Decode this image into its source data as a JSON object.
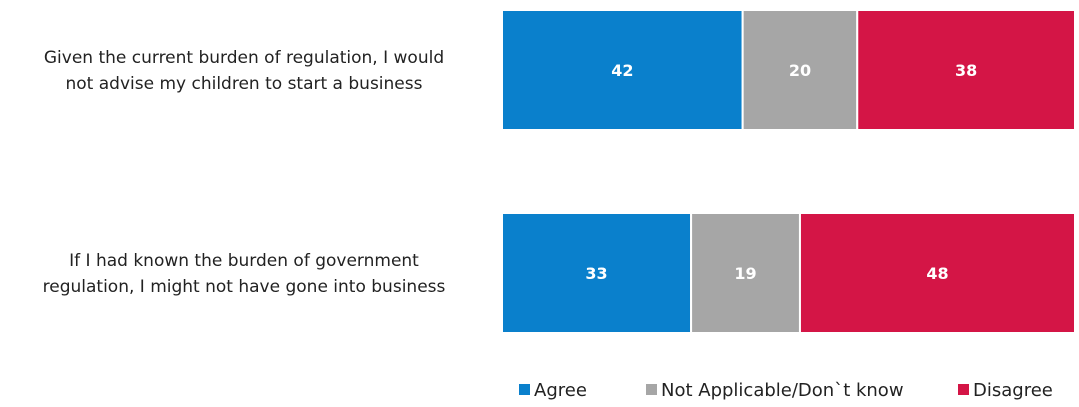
{
  "chart_data": {
    "type": "bar",
    "orientation": "horizontal",
    "stacked": true,
    "categories": [
      "Given the current burden of regulation, I would not advise my children to start a business",
      "If I had known the burden of government regulation, I might not have gone into business"
    ],
    "category_lines": [
      [
        "Given the current burden of regulation, I would",
        "not advise my children to start a business"
      ],
      [
        "If I had known the burden of government",
        "regulation, I might not have gone into business"
      ]
    ],
    "series": [
      {
        "name": "Agree",
        "values": [
          42,
          33
        ],
        "color": "#0a80cc"
      },
      {
        "name": "Not Applicable/Don`t know",
        "values": [
          20,
          19
        ],
        "color": "#a6a6a6"
      },
      {
        "name": "Disagree",
        "values": [
          38,
          48
        ],
        "color": "#d41546"
      }
    ],
    "xlim": [
      0,
      100
    ],
    "grid": false,
    "legend_position": "bottom-right"
  }
}
